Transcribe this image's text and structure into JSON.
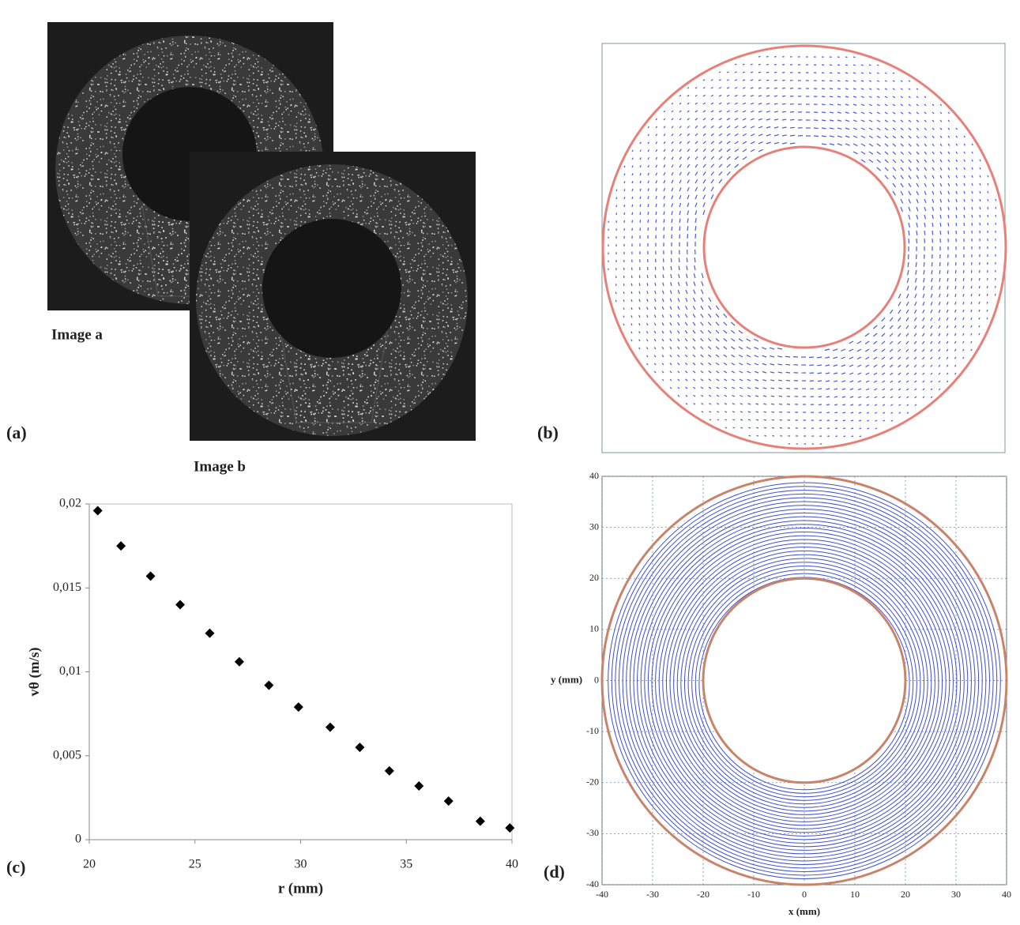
{
  "figure": {
    "panel_labels": [
      "(a)",
      "(b)",
      "(c)",
      "(d)"
    ],
    "image_labels": [
      "Image a",
      "Image b"
    ]
  },
  "chart_data": [
    {
      "type": "scatter",
      "xlabel": "r (mm)",
      "ylabel": "vθ (m/s)",
      "color": "#000000",
      "x": [
        20.4,
        21.5,
        22.9,
        24.3,
        25.7,
        27.1,
        28.5,
        29.9,
        31.4,
        32.8,
        34.2,
        35.6,
        37.0,
        38.5,
        39.9
      ],
      "values": [
        0.0196,
        0.0175,
        0.0157,
        0.014,
        0.0123,
        0.0106,
        0.0092,
        0.0079,
        0.0067,
        0.0055,
        0.0041,
        0.0032,
        0.0023,
        0.0011,
        0.0007
      ],
      "xlim": [
        20,
        40
      ],
      "xticks": [
        20,
        25,
        30,
        35,
        40
      ],
      "ylim": [
        0,
        0.02
      ],
      "yticks": [
        0,
        {
          "value": 0.005,
          "label": "0,005"
        },
        {
          "value": 0.01,
          "label": "0,01"
        },
        {
          "value": 0.015,
          "label": "0,015"
        },
        {
          "value": 0.02,
          "label": "0,02"
        }
      ]
    },
    {
      "type": "streamline",
      "xlabel": "x (mm)",
      "ylabel": "y (mm)",
      "color": "#3f4fd0",
      "boundary_color": "#c8846a",
      "xlim": [
        -40,
        40
      ],
      "xticks": [
        -40,
        -30,
        -20,
        -10,
        0,
        10,
        20,
        30,
        40
      ],
      "ylim": [
        -40,
        40
      ],
      "yticks": [
        -40,
        -30,
        -20,
        -10,
        0,
        10,
        20,
        30,
        40
      ],
      "grid": true
    }
  ]
}
